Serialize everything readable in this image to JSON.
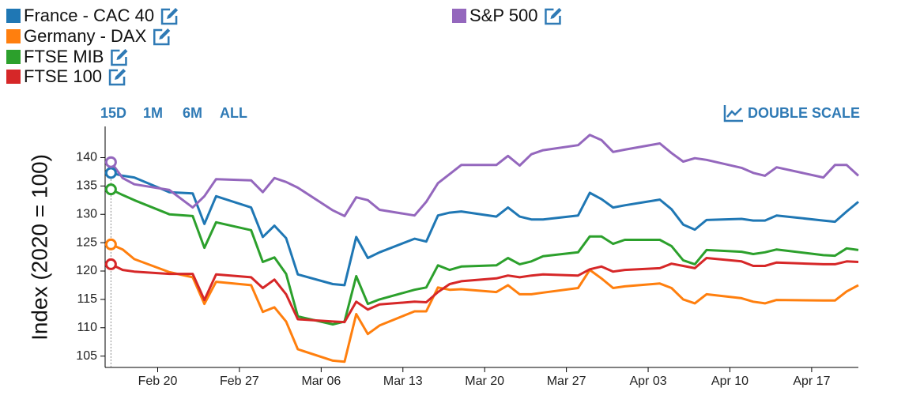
{
  "controls": {
    "ranges": [
      "15D",
      "1M",
      "6M",
      "ALL"
    ],
    "double_scale": "DOUBLE SCALE"
  },
  "chart_data": {
    "type": "line",
    "y_label": "Index (2020 = 100)",
    "x": [
      47,
      48,
      49,
      52,
      54,
      55,
      56,
      59,
      60,
      61,
      62,
      63,
      66,
      67,
      68,
      69,
      70,
      73,
      74,
      75,
      76,
      77,
      80,
      81,
      82,
      83,
      84,
      87,
      88,
      89,
      90,
      91,
      94,
      95,
      96,
      97,
      98,
      101,
      102,
      103,
      104,
      108,
      109,
      110,
      111
    ],
    "xlim": [
      46.5,
      111
    ],
    "xticks": [
      {
        "value": 51,
        "label": "Feb 20"
      },
      {
        "value": 58,
        "label": "Feb 27"
      },
      {
        "value": 65,
        "label": "Mar 06"
      },
      {
        "value": 72,
        "label": "Mar 13"
      },
      {
        "value": 79,
        "label": "Mar 20"
      },
      {
        "value": 86,
        "label": "Mar 27"
      },
      {
        "value": 93,
        "label": "Apr 03"
      },
      {
        "value": 100,
        "label": "Apr 10"
      },
      {
        "value": 107,
        "label": "Apr 17"
      }
    ],
    "ylim": [
      103,
      145.5
    ],
    "yticks": [
      105,
      110,
      115,
      120,
      125,
      130,
      135,
      140
    ],
    "series": [
      {
        "name": "France - CAC 40",
        "color": "#1f77b4",
        "values": [
          137.3,
          136.8,
          136.5,
          133.9,
          133.7,
          128.3,
          133.2,
          131.2,
          126.0,
          128.0,
          125.8,
          119.4,
          117.7,
          117.5,
          126.0,
          122.3,
          123.3,
          125.7,
          125.2,
          129.8,
          130.3,
          130.5,
          129.6,
          131.2,
          129.6,
          129.1,
          129.1,
          129.8,
          133.8,
          132.7,
          131.2,
          131.6,
          132.6,
          130.9,
          128.2,
          127.3,
          129.0,
          129.2,
          128.9,
          128.9,
          129.8,
          128.9,
          128.7,
          130.5,
          132.2
        ]
      },
      {
        "name": "Germany - DAX",
        "color": "#ff7f0e",
        "values": [
          124.7,
          123.8,
          122.1,
          119.8,
          118.9,
          114.2,
          118.1,
          117.5,
          112.8,
          113.6,
          111.1,
          106.2,
          104.2,
          104.0,
          112.4,
          108.9,
          110.4,
          112.9,
          112.9,
          117.1,
          116.7,
          116.8,
          116.3,
          117.5,
          115.9,
          115.9,
          116.2,
          117.0,
          120.2,
          118.7,
          117.0,
          117.3,
          117.8,
          117.0,
          115.0,
          114.3,
          115.9,
          115.2,
          114.6,
          114.3,
          114.9,
          114.8,
          114.8,
          116.4,
          117.5
        ]
      },
      {
        "name": "FTSE MIB",
        "color": "#2ca02c",
        "values": [
          134.4,
          133.4,
          132.5,
          130.0,
          129.7,
          124.1,
          128.6,
          127.2,
          121.6,
          122.4,
          119.5,
          112.0,
          110.6,
          111.1,
          119.1,
          114.2,
          115.0,
          116.7,
          117.1,
          121.0,
          120.2,
          120.8,
          121.0,
          122.3,
          121.2,
          121.7,
          122.6,
          123.3,
          126.1,
          126.1,
          124.8,
          125.5,
          125.5,
          124.4,
          121.9,
          121.2,
          123.7,
          123.4,
          123.0,
          123.3,
          123.8,
          122.8,
          122.7,
          124.0,
          123.7
        ]
      },
      {
        "name": "FTSE 100",
        "color": "#d62728",
        "values": [
          121.2,
          120.2,
          119.9,
          119.5,
          119.5,
          114.9,
          119.4,
          118.9,
          117.0,
          118.5,
          115.9,
          111.5,
          111.1,
          111.0,
          114.6,
          113.2,
          114.1,
          114.6,
          114.5,
          116.3,
          117.7,
          118.2,
          118.7,
          119.2,
          118.9,
          119.2,
          119.4,
          119.2,
          120.3,
          120.8,
          119.9,
          120.2,
          120.5,
          121.3,
          120.9,
          120.5,
          122.3,
          121.7,
          120.9,
          120.9,
          121.5,
          121.2,
          121.2,
          121.7,
          121.6
        ]
      },
      {
        "name": "S&P 500",
        "color": "#9467bd",
        "values": [
          139.2,
          136.4,
          135.3,
          134.3,
          131.2,
          133.2,
          136.2,
          136.0,
          133.9,
          136.4,
          135.7,
          134.7,
          130.7,
          129.7,
          133.0,
          132.5,
          130.8,
          129.8,
          132.2,
          135.5,
          137.1,
          138.7,
          138.7,
          140.3,
          138.6,
          140.6,
          141.3,
          142.2,
          144.0,
          143.1,
          141.0,
          141.4,
          142.5,
          140.8,
          139.3,
          139.9,
          139.6,
          138.2,
          137.3,
          136.8,
          138.3,
          136.5,
          138.7,
          138.7,
          136.8
        ]
      }
    ]
  }
}
